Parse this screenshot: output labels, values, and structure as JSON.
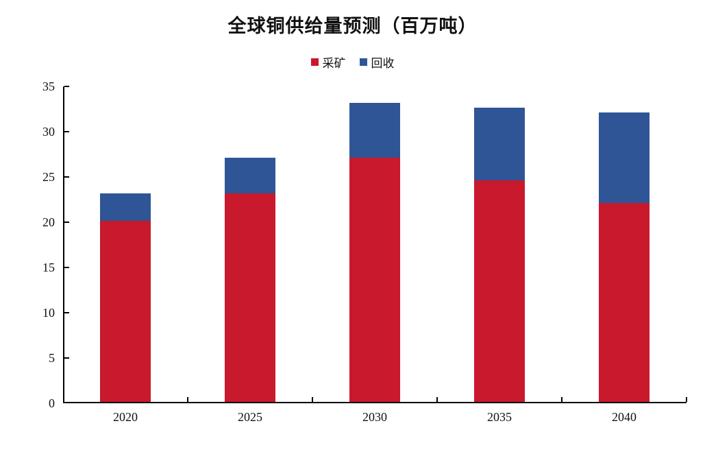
{
  "chart_data": {
    "type": "bar",
    "stacked": true,
    "title": "全球铜供给量预测（百万吨）",
    "categories": [
      "2020",
      "2025",
      "2030",
      "2035",
      "2040"
    ],
    "series": [
      {
        "name": "采矿",
        "color": "#c8192d",
        "values": [
          20,
          23,
          27,
          24.5,
          22
        ]
      },
      {
        "name": "回收",
        "color": "#2f5596",
        "values": [
          3,
          4,
          6,
          8,
          10
        ]
      }
    ],
    "totals": [
      23,
      27,
      33,
      32.5,
      32
    ],
    "xlabel": "",
    "ylabel": "",
    "ylim": [
      0,
      35
    ],
    "ytick_step": 5,
    "y_ticks": [
      "0",
      "5",
      "10",
      "15",
      "20",
      "25",
      "30",
      "35"
    ],
    "legend_position": "top-center",
    "grid": false,
    "background_color": "#ffffff",
    "axis_color": "#000000"
  }
}
